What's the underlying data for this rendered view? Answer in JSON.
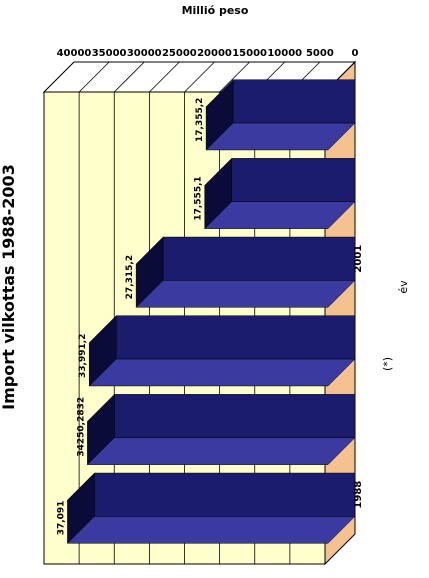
{
  "chart_data": {
    "type": "bar",
    "title": "Import vilkottas 1988-2003",
    "ylabel": "Millió peso",
    "categories": [
      "1988",
      "",
      "",
      "2001",
      "",
      ""
    ],
    "values": [
      37091,
      34250,
      33991,
      27315,
      17555,
      17355
    ],
    "data_labels": [
      "37,091",
      "34250,2832",
      "33,991,2",
      "27,315,2",
      "17,555,1",
      "17,355,2"
    ],
    "special_text": [
      "(*)",
      "év"
    ],
    "y_ticks": [
      "0",
      "5000",
      "10000",
      "15000",
      "20000",
      "25000",
      "30000",
      "35000",
      "40000"
    ],
    "ylim": [
      0,
      40000
    ],
    "orientation": "rotated-180 horizontal 3d bars",
    "colors": {
      "bar_front": "#1c1c6e",
      "bar_top": "#3a3aa0",
      "bar_side": "#0b0b3a",
      "wall": "#ffffcc",
      "floor": "#f5c28f",
      "grid": "#000000"
    }
  }
}
